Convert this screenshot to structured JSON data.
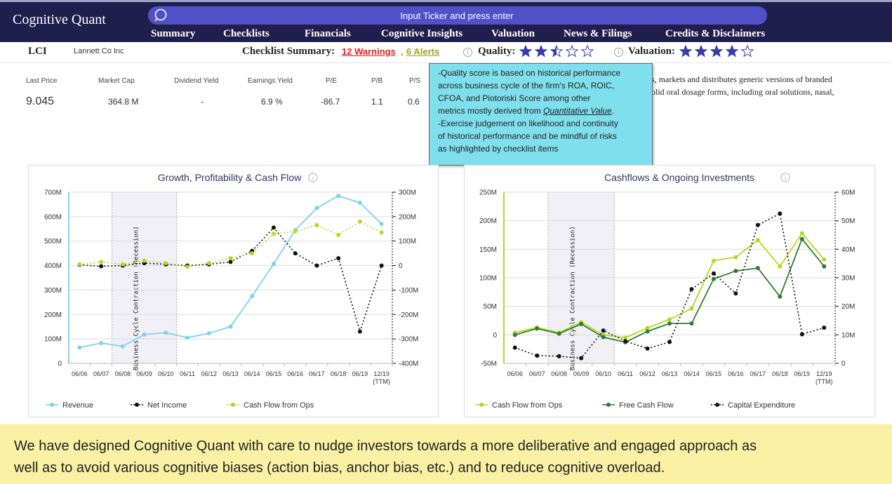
{
  "brand": "Cognitive Quant",
  "search": {
    "placeholder": "Input Ticker and press enter"
  },
  "nav": [
    "Summary",
    "Checklists",
    "Financials",
    "Cognitive Insights",
    "Valuation",
    "News & Filings",
    "Credits & Disclaimers"
  ],
  "summary": {
    "ticker": "LCI",
    "company": "Lannett Co Inc",
    "checklist_label": "Checklist Summary:",
    "warnings": "12 Warnings",
    "separator": ",",
    "alerts": "6 Alerts",
    "quality_label": "Quality:",
    "quality_stars": 2.5,
    "valuation_label": "Valuation:",
    "valuation_stars": 4,
    "max_stars": 5,
    "star_color": "#3a3ab0"
  },
  "metrics": [
    {
      "label": "Last Price",
      "value": "9.045"
    },
    {
      "label": "Market Cap",
      "value": "364.8 M"
    },
    {
      "label": "Dividend Yield",
      "value": "-"
    },
    {
      "label": "Earnings Yield",
      "value": "6.9 %"
    },
    {
      "label": "P/E",
      "value": "-86.7"
    },
    {
      "label": "P/B",
      "value": "1.1"
    },
    {
      "label": "P/S",
      "value": "0.6"
    }
  ],
  "description": {
    "line1": "s, markets and distributes generic versions of branded",
    "line2": "olid oral dosage forms, including oral solutions, nasal,"
  },
  "tooltip": {
    "line1": "-Quality score is based on historical performance",
    "line2": "across business cycle of the firm's ROA, ROIC,",
    "line3": "CFOA, and Piotoriski Score among other",
    "line4_prefix": "metrics mostly derived from ",
    "line4_link": "Quantitative Value",
    "line4_suffix": ".",
    "line5": "-Exercise judgement on likelihood and continuity",
    "line6": "of historical performance and be mindful of risks",
    "line7": "as highlighted by checklist items"
  },
  "chart_data": [
    {
      "type": "line",
      "title": "Growth, Profitability & Cash Flow",
      "categories": [
        "06/06",
        "06/07",
        "06/08",
        "06/09",
        "06/10",
        "06/11",
        "06/12",
        "06/13",
        "06/14",
        "06/15",
        "06/16",
        "06/17",
        "06/18",
        "06/19",
        "12/19"
      ],
      "last_category_sub": "(TTM)",
      "recession": {
        "from": "06/07",
        "to": "06/10",
        "label": "Business Cycle Contraction (Recession)"
      },
      "left_axis": {
        "ticks": [
          "0",
          "100M",
          "200M",
          "300M",
          "400M",
          "500M",
          "600M",
          "700M"
        ],
        "ylim": [
          0,
          700
        ]
      },
      "right_axis": {
        "ticks": [
          "-400M",
          "-300M",
          "-200M",
          "-100M",
          "0",
          "100M",
          "200M",
          "300M"
        ],
        "ylim": [
          -400,
          300
        ]
      },
      "series": [
        {
          "name": "Revenue",
          "axis": "left",
          "color": "#7dd3ef",
          "dash": false,
          "values": [
            65,
            83,
            70,
            118,
            125,
            105,
            123,
            150,
            275,
            407,
            545,
            635,
            685,
            657,
            570
          ]
        },
        {
          "name": "Net Income",
          "axis": "right",
          "color": "#111111",
          "dash": true,
          "values": [
            3,
            -3,
            0,
            10,
            5,
            0,
            5,
            15,
            60,
            155,
            50,
            0,
            30,
            -270,
            0
          ]
        },
        {
          "name": "Cash Flow from Ops",
          "axis": "right",
          "color": "#b5d823",
          "dash": true,
          "values": [
            5,
            15,
            5,
            20,
            10,
            -5,
            10,
            30,
            50,
            130,
            140,
            165,
            125,
            180,
            135
          ]
        }
      ]
    },
    {
      "type": "line",
      "title": "Cashflows & Ongoing Investments",
      "categories": [
        "06/06",
        "06/07",
        "06/08",
        "06/09",
        "06/10",
        "06/11",
        "06/12",
        "06/13",
        "06/14",
        "06/15",
        "06/16",
        "06/17",
        "06/18",
        "06/19",
        "12/19"
      ],
      "last_category_sub": "(TTM)",
      "recession": {
        "from": "06/07",
        "to": "06/10",
        "label": "Business Cycle Contraction (Recession)"
      },
      "left_axis": {
        "ticks": [
          "-50M",
          "0",
          "50M",
          "100M",
          "150M",
          "200M",
          "250M"
        ],
        "ylim": [
          -50,
          250
        ]
      },
      "right_axis": {
        "ticks": [
          "0",
          "10M",
          "20M",
          "30M",
          "40M",
          "50M",
          "60M"
        ],
        "ylim": [
          0,
          60
        ]
      },
      "series": [
        {
          "name": "Cash Flow from Ops",
          "axis": "left",
          "color": "#b5d823",
          "dash": false,
          "values": [
            4,
            13,
            4,
            22,
            0,
            -5,
            12,
            27,
            46,
            130,
            136,
            166,
            120,
            178,
            132
          ]
        },
        {
          "name": "Free Cash Flow",
          "axis": "left",
          "color": "#2e7d32",
          "dash": false,
          "values": [
            0,
            11,
            2,
            19,
            -4,
            -13,
            6,
            20,
            20,
            98,
            112,
            117,
            67,
            168,
            120
          ]
        },
        {
          "name": "Capital Expenditure",
          "axis": "right",
          "color": "#111111",
          "dash": true,
          "values": [
            5.5,
            2.7,
            2.5,
            1.8,
            11.5,
            7.8,
            5.2,
            7.5,
            26,
            31.5,
            24.5,
            48.5,
            52.5,
            10.2,
            12.5
          ]
        }
      ]
    }
  ],
  "banner": {
    "line1": "We have designed Cognitive Quant with care to nudge investors towards a more deliberative and engaged approach as",
    "line2": "well as to avoid various cognitive biases (action bias, anchor bias, etc.) and to reduce cognitive overload."
  }
}
